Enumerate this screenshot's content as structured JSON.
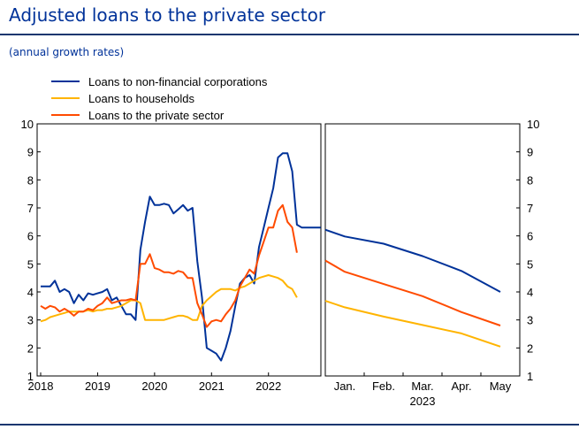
{
  "header": {
    "title": "Adjusted loans to the private sector",
    "subtitle": "(annual growth rates)"
  },
  "chart_data": [
    {
      "type": "line",
      "panel": "left",
      "x_tick_labels": [
        "2018",
        "2019",
        "2020",
        "2021",
        "2022"
      ],
      "x_range": [
        2018.0,
        2022.92
      ],
      "ylim": [
        1,
        10
      ],
      "yticks": [
        1,
        2,
        3,
        4,
        5,
        6,
        7,
        8,
        9,
        10
      ],
      "legend": "top-left",
      "series": [
        {
          "name": "Loans to non-financial corporations",
          "color": "#003299",
          "x": [
            2018.0,
            2018.083,
            2018.167,
            2018.25,
            2018.333,
            2018.417,
            2018.5,
            2018.583,
            2018.667,
            2018.75,
            2018.833,
            2018.917,
            2019.0,
            2019.083,
            2019.167,
            2019.25,
            2019.333,
            2019.417,
            2019.5,
            2019.583,
            2019.667,
            2019.75,
            2019.833,
            2019.917,
            2020.0,
            2020.083,
            2020.167,
            2020.25,
            2020.333,
            2020.417,
            2020.5,
            2020.583,
            2020.667,
            2020.75,
            2020.833,
            2020.917,
            2021.0,
            2021.083,
            2021.167,
            2021.25,
            2021.333,
            2021.417,
            2021.5,
            2021.583,
            2021.667,
            2021.75,
            2021.833,
            2021.917,
            2022.0,
            2022.083,
            2022.167,
            2022.25,
            2022.333,
            2022.417,
            2022.5,
            2022.583,
            2022.667,
            2022.75,
            2022.833,
            2022.917
          ],
          "y": [
            4.2,
            4.2,
            4.2,
            4.4,
            4.0,
            4.1,
            4.0,
            3.6,
            3.9,
            3.7,
            3.95,
            3.9,
            3.95,
            4.0,
            4.1,
            3.7,
            3.8,
            3.5,
            3.2,
            3.2,
            3.0,
            5.5,
            6.5,
            7.4,
            7.1,
            7.1,
            7.15,
            7.1,
            6.8,
            6.95,
            7.1,
            6.9,
            7.0,
            5.1,
            3.8,
            2.0,
            1.9,
            1.8,
            1.55,
            2.0,
            2.6,
            3.5,
            4.3,
            4.5,
            4.6,
            4.3,
            5.6,
            6.3,
            7.0,
            7.7,
            8.8,
            8.95,
            8.95,
            8.3,
            6.4,
            6.3,
            6.3,
            6.3,
            6.3,
            6.3
          ]
        },
        {
          "name": "Loans to households",
          "color": "#ffb400",
          "x": [
            2018.0,
            2018.083,
            2018.167,
            2018.25,
            2018.333,
            2018.417,
            2018.5,
            2018.583,
            2018.667,
            2018.75,
            2018.833,
            2018.917,
            2019.0,
            2019.083,
            2019.167,
            2019.25,
            2019.333,
            2019.417,
            2019.5,
            2019.583,
            2019.667,
            2019.75,
            2019.833,
            2019.917,
            2020.0,
            2020.083,
            2020.167,
            2020.25,
            2020.333,
            2020.417,
            2020.5,
            2020.583,
            2020.667,
            2020.75,
            2020.833,
            2020.917,
            2021.0,
            2021.083,
            2021.167,
            2021.25,
            2021.333,
            2021.417,
            2021.5,
            2021.583,
            2021.667,
            2021.75,
            2021.833,
            2021.917,
            2022.0,
            2022.083,
            2022.167,
            2022.25,
            2022.333,
            2022.417,
            2022.5
          ],
          "y": [
            2.95,
            3.0,
            3.1,
            3.15,
            3.2,
            3.25,
            3.3,
            3.3,
            3.3,
            3.3,
            3.35,
            3.3,
            3.35,
            3.35,
            3.4,
            3.4,
            3.45,
            3.5,
            3.6,
            3.7,
            3.7,
            3.6,
            3.0,
            3.0,
            3.0,
            3.0,
            3.0,
            3.05,
            3.1,
            3.15,
            3.15,
            3.1,
            3.0,
            3.0,
            3.5,
            3.7,
            3.85,
            4.0,
            4.1,
            4.1,
            4.1,
            4.05,
            4.15,
            4.2,
            4.3,
            4.4,
            4.5,
            4.55,
            4.6,
            4.55,
            4.5,
            4.4,
            4.2,
            4.1,
            3.8
          ]
        },
        {
          "name": "Loans to the private sector",
          "color": "#ff4b00",
          "x": [
            2018.0,
            2018.083,
            2018.167,
            2018.25,
            2018.333,
            2018.417,
            2018.5,
            2018.583,
            2018.667,
            2018.75,
            2018.833,
            2018.917,
            2019.0,
            2019.083,
            2019.167,
            2019.25,
            2019.333,
            2019.417,
            2019.5,
            2019.583,
            2019.667,
            2019.75,
            2019.833,
            2019.917,
            2020.0,
            2020.083,
            2020.167,
            2020.25,
            2020.333,
            2020.417,
            2020.5,
            2020.583,
            2020.667,
            2020.75,
            2020.833,
            2020.917,
            2021.0,
            2021.083,
            2021.167,
            2021.25,
            2021.333,
            2021.417,
            2021.5,
            2021.583,
            2021.667,
            2021.75,
            2021.833,
            2021.917,
            2022.0,
            2022.083,
            2022.167,
            2022.25,
            2022.333,
            2022.417,
            2022.5
          ],
          "y": [
            3.5,
            3.4,
            3.5,
            3.45,
            3.3,
            3.4,
            3.3,
            3.15,
            3.3,
            3.3,
            3.4,
            3.35,
            3.5,
            3.6,
            3.8,
            3.6,
            3.65,
            3.7,
            3.7,
            3.75,
            3.7,
            5.0,
            5.0,
            5.35,
            4.85,
            4.8,
            4.7,
            4.7,
            4.65,
            4.75,
            4.7,
            4.5,
            4.5,
            3.6,
            3.2,
            2.75,
            2.95,
            3.0,
            2.95,
            3.2,
            3.4,
            3.7,
            4.2,
            4.5,
            4.8,
            4.65,
            5.3,
            5.8,
            6.3,
            6.3,
            6.9,
            7.1,
            6.5,
            6.3,
            5.4
          ]
        }
      ]
    },
    {
      "type": "line",
      "panel": "right",
      "categories": [
        "Jan.",
        "Feb.",
        "Mar.",
        "Apr.",
        "May"
      ],
      "year_label": "2023",
      "ylim": [
        1,
        10
      ],
      "yticks": [
        1,
        2,
        3,
        4,
        5,
        6,
        7,
        8,
        9,
        10
      ],
      "series": [
        {
          "name": "Loans to non-financial corporations",
          "color": "#003299",
          "x": [
            0,
            1,
            2,
            3,
            4,
            5
          ],
          "y": [
            6.22,
            5.98,
            5.72,
            5.28,
            4.75,
            4.0
          ]
        },
        {
          "name": "Loans to households",
          "color": "#ffb400",
          "x": [
            0,
            1,
            2,
            3,
            4,
            5
          ],
          "y": [
            3.68,
            3.45,
            3.12,
            2.82,
            2.52,
            2.05
          ]
        },
        {
          "name": "Loans to the private sector",
          "color": "#ff4b00",
          "x": [
            0,
            1,
            2,
            3,
            4,
            5
          ],
          "y": [
            5.12,
            4.72,
            4.28,
            3.85,
            3.28,
            2.8
          ]
        }
      ]
    }
  ]
}
